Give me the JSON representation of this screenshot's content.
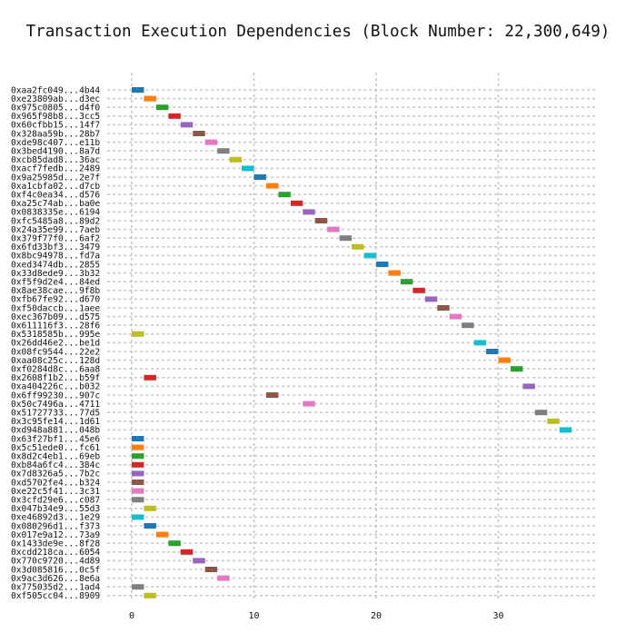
{
  "chart_data": {
    "type": "gantt",
    "title": "Transaction Execution Dependencies (Block Number: 22,300,649)",
    "xlabel": "",
    "ylabel": "",
    "xlim": [
      -2,
      38
    ],
    "xticks": [
      0,
      10,
      20,
      30
    ],
    "grid": true,
    "legend": "none",
    "bar_width": 1,
    "palette": [
      "#1f77b4",
      "#ff7f0e",
      "#2ca02c",
      "#d62728",
      "#9467bd",
      "#8c564b",
      "#e377c2",
      "#7f7f7f",
      "#bcbd22",
      "#17becf"
    ],
    "transactions": [
      "0xaa2fc049...4b44",
      "0xe23809ab...d3ec",
      "0x975c0805...d4f0",
      "0x965f98b8...3cc5",
      "0x60cfbb15...14f7",
      "0x328aa59b...28b7",
      "0xde98c407...e11b",
      "0x3bed4190...8a7d",
      "0xcb85dad8...36ac",
      "0xacf7fedb...2489",
      "0x9a25985d...2e7f",
      "0xa1cbfa02...d7cb",
      "0xf4c0ea34...d576",
      "0xa25c74ab...ba0e",
      "0x0838335e...6194",
      "0xfc5485a8...89d2",
      "0x24a35e99...7aeb",
      "0x379f77f0...6af2",
      "0x6fd33bf3...3479",
      "0x8bc94978...fd7a",
      "0xed3474db...2855",
      "0x33d8ede9...3b32",
      "0xf5f9d2e4...84ed",
      "0x8ae38cae...9f8b",
      "0xfb67fe92...d670",
      "0xf50daccb...1aee",
      "0xec367b09...d575",
      "0x611116f3...28f6",
      "0x5318585b...995e",
      "0x26dd46e2...be1d",
      "0x08fc9544...22e2",
      "0xaa08c25c...128d",
      "0xf0284d8c...6aa8",
      "0x2608f1b2...b59f",
      "0xa404226c...b032",
      "0x6ff99230...907c",
      "0x50c7496a...4711",
      "0x51727733...77d5",
      "0x3c95fe14...1d61",
      "0xd948a881...048b",
      "0x63f27bf1...45e6",
      "0x5c51ede0...fc61",
      "0x8d2c4eb1...69eb",
      "0xb84a6fc4...384c",
      "0x7d8326a5...7b2c",
      "0xd5702fe4...b324",
      "0xe22c5f41...3c31",
      "0x3cfd29e6...c087",
      "0x047b34e9...55d3",
      "0xe46892d3...1e29",
      "0x080296d1...f373",
      "0x017e9a12...73a9",
      "0x1433de9e...8f28",
      "0xcdd218ca...6054",
      "0x770c9720...4d89",
      "0x3d085816...0c5f",
      "0x9ac3d626...8e6a",
      "0x775035d2...1ad4",
      "0xf505cc04...8909"
    ],
    "start": [
      0,
      1,
      2,
      3,
      4,
      5,
      6,
      7,
      8,
      9,
      10,
      11,
      12,
      13,
      14,
      15,
      16,
      17,
      18,
      19,
      20,
      21,
      22,
      23,
      24,
      25,
      26,
      27,
      0,
      28,
      29,
      30,
      31,
      1,
      32,
      11,
      14,
      33,
      34,
      35,
      0,
      0,
      0,
      0,
      0,
      0,
      0,
      0,
      1,
      0,
      1,
      2,
      3,
      4,
      5,
      6,
      7,
      0,
      1
    ]
  }
}
